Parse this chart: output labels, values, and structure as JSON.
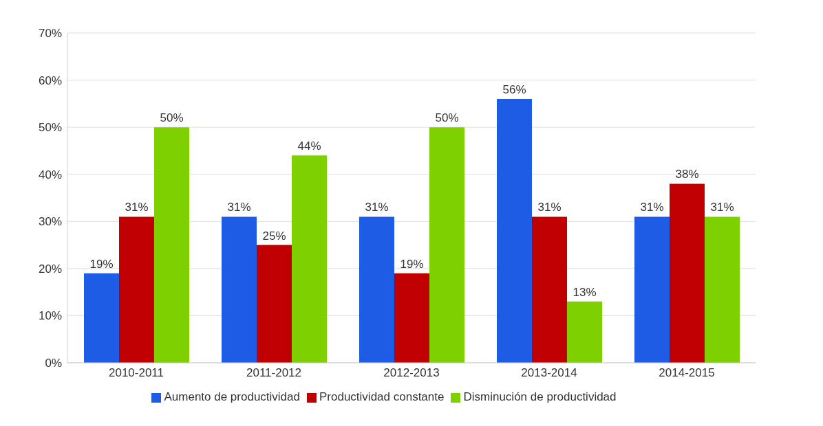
{
  "chart_data": {
    "type": "bar",
    "categories": [
      "2010-2011",
      "2011-2012",
      "2012-2013",
      "2013-2014",
      "2014-2015"
    ],
    "series": [
      {
        "name": "Aumento de productividad",
        "color": "#1f5ce6",
        "values": [
          19,
          31,
          31,
          56,
          31
        ],
        "value_labels": [
          "19%",
          "31%",
          "31%",
          "56%",
          "31%"
        ]
      },
      {
        "name": "Productividad constante",
        "color": "#c00000",
        "values": [
          31,
          25,
          19,
          31,
          38
        ],
        "value_labels": [
          "31%",
          "25%",
          "19%",
          "31%",
          "38%"
        ]
      },
      {
        "name": "Disminución de productividad",
        "color": "#7fd000",
        "values": [
          50,
          44,
          50,
          13,
          31
        ],
        "value_labels": [
          "50%",
          "44%",
          "50%",
          "13%",
          "31%"
        ]
      }
    ],
    "ylim": [
      0,
      70
    ],
    "yticks": [
      {
        "value": 0,
        "label": "0%"
      },
      {
        "value": 10,
        "label": "10%"
      },
      {
        "value": 20,
        "label": "20%"
      },
      {
        "value": 30,
        "label": "30%"
      },
      {
        "value": 40,
        "label": "40%"
      },
      {
        "value": 50,
        "label": "50%"
      },
      {
        "value": 60,
        "label": "60%"
      },
      {
        "value": 70,
        "label": "70%"
      }
    ],
    "grid": "y",
    "legend": "bottom"
  }
}
